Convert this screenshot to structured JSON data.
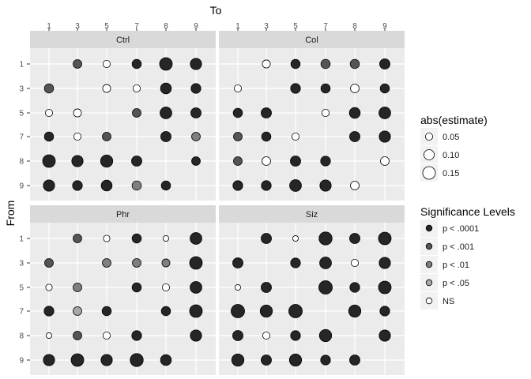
{
  "chart_data": {
    "type": "scatter",
    "x_title": "To",
    "y_title": "From",
    "x_ticks": [
      "1",
      "3",
      "5",
      "7",
      "8",
      "9"
    ],
    "y_ticks": [
      "1",
      "3",
      "5",
      "7",
      "8",
      "9"
    ],
    "grid": true,
    "legend_placement": "right",
    "size_legend": {
      "title": "abs(estimate)",
      "entries": [
        {
          "label": "0.05",
          "value": 0.05
        },
        {
          "label": "0.10",
          "value": 0.1
        },
        {
          "label": "0.15",
          "value": 0.15
        }
      ]
    },
    "fill_legend": {
      "title": "Significance Levels",
      "entries": [
        {
          "label": "p < .0001",
          "color": "#262626"
        },
        {
          "label": "p < .001",
          "color": "#555555"
        },
        {
          "label": "p < .01",
          "color": "#7f7f7f"
        },
        {
          "label": "p < .05",
          "color": "#a8a8a8"
        },
        {
          "label": "NS",
          "color": "#ffffff"
        }
      ]
    },
    "panels": [
      {
        "name": "Ctrl",
        "points": [
          {
            "from": "1",
            "to": "3",
            "estimate": 0.07,
            "sig": "p < .001"
          },
          {
            "from": "1",
            "to": "5",
            "estimate": 0.05,
            "sig": "NS"
          },
          {
            "from": "1",
            "to": "7",
            "estimate": 0.08,
            "sig": "p < .0001"
          },
          {
            "from": "1",
            "to": "8",
            "estimate": 0.15,
            "sig": "p < .0001"
          },
          {
            "from": "1",
            "to": "9",
            "estimate": 0.12,
            "sig": "p < .0001"
          },
          {
            "from": "3",
            "to": "1",
            "estimate": 0.08,
            "sig": "p < .001"
          },
          {
            "from": "3",
            "to": "5",
            "estimate": 0.06,
            "sig": "NS"
          },
          {
            "from": "3",
            "to": "7",
            "estimate": 0.05,
            "sig": "NS"
          },
          {
            "from": "3",
            "to": "8",
            "estimate": 0.11,
            "sig": "p < .0001"
          },
          {
            "from": "3",
            "to": "9",
            "estimate": 0.09,
            "sig": "p < .0001"
          },
          {
            "from": "5",
            "to": "1",
            "estimate": 0.05,
            "sig": "NS"
          },
          {
            "from": "5",
            "to": "3",
            "estimate": 0.06,
            "sig": "NS"
          },
          {
            "from": "5",
            "to": "7",
            "estimate": 0.07,
            "sig": "p < .001"
          },
          {
            "from": "5",
            "to": "8",
            "estimate": 0.13,
            "sig": "p < .0001"
          },
          {
            "from": "5",
            "to": "9",
            "estimate": 0.1,
            "sig": "p < .0001"
          },
          {
            "from": "7",
            "to": "1",
            "estimate": 0.08,
            "sig": "p < .0001"
          },
          {
            "from": "7",
            "to": "3",
            "estimate": 0.05,
            "sig": "NS"
          },
          {
            "from": "7",
            "to": "5",
            "estimate": 0.07,
            "sig": "p < .001"
          },
          {
            "from": "7",
            "to": "8",
            "estimate": 0.1,
            "sig": "p < .0001"
          },
          {
            "from": "7",
            "to": "9",
            "estimate": 0.07,
            "sig": "p < .01"
          },
          {
            "from": "8",
            "to": "1",
            "estimate": 0.15,
            "sig": "p < .0001"
          },
          {
            "from": "8",
            "to": "3",
            "estimate": 0.12,
            "sig": "p < .0001"
          },
          {
            "from": "8",
            "to": "5",
            "estimate": 0.14,
            "sig": "p < .0001"
          },
          {
            "from": "8",
            "to": "7",
            "estimate": 0.1,
            "sig": "p < .0001"
          },
          {
            "from": "8",
            "to": "9",
            "estimate": 0.07,
            "sig": "p < .0001"
          },
          {
            "from": "9",
            "to": "1",
            "estimate": 0.12,
            "sig": "p < .0001"
          },
          {
            "from": "9",
            "to": "3",
            "estimate": 0.09,
            "sig": "p < .0001"
          },
          {
            "from": "9",
            "to": "5",
            "estimate": 0.11,
            "sig": "p < .0001"
          },
          {
            "from": "9",
            "to": "7",
            "estimate": 0.08,
            "sig": "p < .01"
          },
          {
            "from": "9",
            "to": "8",
            "estimate": 0.08,
            "sig": "p < .0001"
          }
        ]
      },
      {
        "name": "Col",
        "points": [
          {
            "from": "1",
            "to": "3",
            "estimate": 0.06,
            "sig": "NS"
          },
          {
            "from": "1",
            "to": "5",
            "estimate": 0.08,
            "sig": "p < .0001"
          },
          {
            "from": "1",
            "to": "7",
            "estimate": 0.08,
            "sig": "p < .001"
          },
          {
            "from": "1",
            "to": "8",
            "estimate": 0.08,
            "sig": "p < .001"
          },
          {
            "from": "1",
            "to": "9",
            "estimate": 0.1,
            "sig": "p < .0001"
          },
          {
            "from": "3",
            "to": "1",
            "estimate": 0.05,
            "sig": "NS"
          },
          {
            "from": "3",
            "to": "5",
            "estimate": 0.09,
            "sig": "p < .0001"
          },
          {
            "from": "3",
            "to": "7",
            "estimate": 0.08,
            "sig": "p < .0001"
          },
          {
            "from": "3",
            "to": "8",
            "estimate": 0.07,
            "sig": "NS"
          },
          {
            "from": "3",
            "to": "9",
            "estimate": 0.08,
            "sig": "p < .0001"
          },
          {
            "from": "5",
            "to": "1",
            "estimate": 0.08,
            "sig": "p < .0001"
          },
          {
            "from": "5",
            "to": "3",
            "estimate": 0.1,
            "sig": "p < .0001"
          },
          {
            "from": "5",
            "to": "7",
            "estimate": 0.05,
            "sig": "NS"
          },
          {
            "from": "5",
            "to": "8",
            "estimate": 0.11,
            "sig": "p < .0001"
          },
          {
            "from": "5",
            "to": "9",
            "estimate": 0.13,
            "sig": "p < .0001"
          },
          {
            "from": "7",
            "to": "1",
            "estimate": 0.07,
            "sig": "p < .001"
          },
          {
            "from": "7",
            "to": "3",
            "estimate": 0.08,
            "sig": "p < .0001"
          },
          {
            "from": "7",
            "to": "5",
            "estimate": 0.05,
            "sig": "NS"
          },
          {
            "from": "7",
            "to": "8",
            "estimate": 0.1,
            "sig": "p < .0001"
          },
          {
            "from": "7",
            "to": "9",
            "estimate": 0.12,
            "sig": "p < .0001"
          },
          {
            "from": "8",
            "to": "1",
            "estimate": 0.07,
            "sig": "p < .001"
          },
          {
            "from": "8",
            "to": "3",
            "estimate": 0.07,
            "sig": "NS"
          },
          {
            "from": "8",
            "to": "5",
            "estimate": 0.1,
            "sig": "p < .0001"
          },
          {
            "from": "8",
            "to": "7",
            "estimate": 0.09,
            "sig": "p < .0001"
          },
          {
            "from": "8",
            "to": "9",
            "estimate": 0.07,
            "sig": "NS"
          },
          {
            "from": "9",
            "to": "1",
            "estimate": 0.09,
            "sig": "p < .0001"
          },
          {
            "from": "9",
            "to": "3",
            "estimate": 0.09,
            "sig": "p < .0001"
          },
          {
            "from": "9",
            "to": "5",
            "estimate": 0.13,
            "sig": "p < .0001"
          },
          {
            "from": "9",
            "to": "7",
            "estimate": 0.12,
            "sig": "p < .0001"
          },
          {
            "from": "9",
            "to": "8",
            "estimate": 0.07,
            "sig": "NS"
          }
        ]
      },
      {
        "name": "Phr",
        "points": [
          {
            "from": "1",
            "to": "3",
            "estimate": 0.07,
            "sig": "p < .001"
          },
          {
            "from": "1",
            "to": "5",
            "estimate": 0.04,
            "sig": "NS"
          },
          {
            "from": "1",
            "to": "7",
            "estimate": 0.08,
            "sig": "p < .0001"
          },
          {
            "from": "1",
            "to": "8",
            "estimate": 0.03,
            "sig": "NS"
          },
          {
            "from": "1",
            "to": "9",
            "estimate": 0.13,
            "sig": "p < .0001"
          },
          {
            "from": "3",
            "to": "1",
            "estimate": 0.07,
            "sig": "p < .001"
          },
          {
            "from": "3",
            "to": "5",
            "estimate": 0.07,
            "sig": "p < .01"
          },
          {
            "from": "3",
            "to": "7",
            "estimate": 0.07,
            "sig": "p < .01"
          },
          {
            "from": "3",
            "to": "8",
            "estimate": 0.06,
            "sig": "p < .01"
          },
          {
            "from": "3",
            "to": "9",
            "estimate": 0.15,
            "sig": "p < .0001"
          },
          {
            "from": "5",
            "to": "1",
            "estimate": 0.04,
            "sig": "NS"
          },
          {
            "from": "5",
            "to": "3",
            "estimate": 0.07,
            "sig": "p < .01"
          },
          {
            "from": "5",
            "to": "7",
            "estimate": 0.08,
            "sig": "p < .0001"
          },
          {
            "from": "5",
            "to": "8",
            "estimate": 0.05,
            "sig": "NS"
          },
          {
            "from": "5",
            "to": "9",
            "estimate": 0.13,
            "sig": "p < .0001"
          },
          {
            "from": "7",
            "to": "1",
            "estimate": 0.09,
            "sig": "p < .0001"
          },
          {
            "from": "7",
            "to": "3",
            "estimate": 0.07,
            "sig": "p < .05"
          },
          {
            "from": "7",
            "to": "5",
            "estimate": 0.08,
            "sig": "p < .0001"
          },
          {
            "from": "7",
            "to": "8",
            "estimate": 0.08,
            "sig": "p < .0001"
          },
          {
            "from": "7",
            "to": "9",
            "estimate": 0.15,
            "sig": "p < .0001"
          },
          {
            "from": "8",
            "to": "1",
            "estimate": 0.03,
            "sig": "NS"
          },
          {
            "from": "8",
            "to": "3",
            "estimate": 0.07,
            "sig": "p < .001"
          },
          {
            "from": "8",
            "to": "5",
            "estimate": 0.05,
            "sig": "NS"
          },
          {
            "from": "8",
            "to": "7",
            "estimate": 0.09,
            "sig": "p < .0001"
          },
          {
            "from": "8",
            "to": "9",
            "estimate": 0.12,
            "sig": "p < .0001"
          },
          {
            "from": "9",
            "to": "1",
            "estimate": 0.12,
            "sig": "p < .0001"
          },
          {
            "from": "9",
            "to": "3",
            "estimate": 0.15,
            "sig": "p < .0001"
          },
          {
            "from": "9",
            "to": "5",
            "estimate": 0.12,
            "sig": "p < .0001"
          },
          {
            "from": "9",
            "to": "7",
            "estimate": 0.16,
            "sig": "p < .0001"
          },
          {
            "from": "9",
            "to": "8",
            "estimate": 0.11,
            "sig": "p < .0001"
          }
        ]
      },
      {
        "name": "Siz",
        "points": [
          {
            "from": "1",
            "to": "3",
            "estimate": 0.1,
            "sig": "p < .0001"
          },
          {
            "from": "1",
            "to": "5",
            "estimate": 0.03,
            "sig": "NS"
          },
          {
            "from": "1",
            "to": "7",
            "estimate": 0.16,
            "sig": "p < .0001"
          },
          {
            "from": "1",
            "to": "8",
            "estimate": 0.1,
            "sig": "p < .0001"
          },
          {
            "from": "1",
            "to": "9",
            "estimate": 0.15,
            "sig": "p < .0001"
          },
          {
            "from": "3",
            "to": "1",
            "estimate": 0.1,
            "sig": "p < .0001"
          },
          {
            "from": "3",
            "to": "5",
            "estimate": 0.09,
            "sig": "p < .0001"
          },
          {
            "from": "3",
            "to": "7",
            "estimate": 0.13,
            "sig": "p < .0001"
          },
          {
            "from": "3",
            "to": "8",
            "estimate": 0.05,
            "sig": "NS"
          },
          {
            "from": "3",
            "to": "9",
            "estimate": 0.12,
            "sig": "p < .0001"
          },
          {
            "from": "5",
            "to": "1",
            "estimate": 0.03,
            "sig": "NS"
          },
          {
            "from": "5",
            "to": "3",
            "estimate": 0.1,
            "sig": "p < .0001"
          },
          {
            "from": "5",
            "to": "7",
            "estimate": 0.17,
            "sig": "p < .0001"
          },
          {
            "from": "5",
            "to": "8",
            "estimate": 0.09,
            "sig": "p < .0001"
          },
          {
            "from": "5",
            "to": "9",
            "estimate": 0.15,
            "sig": "p < .0001"
          },
          {
            "from": "7",
            "to": "1",
            "estimate": 0.17,
            "sig": "p < .0001"
          },
          {
            "from": "7",
            "to": "3",
            "estimate": 0.14,
            "sig": "p < .0001"
          },
          {
            "from": "7",
            "to": "5",
            "estimate": 0.17,
            "sig": "p < .0001"
          },
          {
            "from": "7",
            "to": "8",
            "estimate": 0.14,
            "sig": "p < .0001"
          },
          {
            "from": "7",
            "to": "9",
            "estimate": 0.09,
            "sig": "p < .0001"
          },
          {
            "from": "8",
            "to": "1",
            "estimate": 0.1,
            "sig": "p < .0001"
          },
          {
            "from": "8",
            "to": "3",
            "estimate": 0.05,
            "sig": "NS"
          },
          {
            "from": "8",
            "to": "5",
            "estimate": 0.09,
            "sig": "p < .0001"
          },
          {
            "from": "8",
            "to": "7",
            "estimate": 0.14,
            "sig": "p < .0001"
          },
          {
            "from": "8",
            "to": "9",
            "estimate": 0.12,
            "sig": "p < .0001"
          },
          {
            "from": "9",
            "to": "1",
            "estimate": 0.14,
            "sig": "p < .0001"
          },
          {
            "from": "9",
            "to": "3",
            "estimate": 0.1,
            "sig": "p < .0001"
          },
          {
            "from": "9",
            "to": "5",
            "estimate": 0.14,
            "sig": "p < .0001"
          },
          {
            "from": "9",
            "to": "7",
            "estimate": 0.09,
            "sig": "p < .0001"
          },
          {
            "from": "9",
            "to": "8",
            "estimate": 0.1,
            "sig": "p < .0001"
          }
        ]
      }
    ]
  }
}
